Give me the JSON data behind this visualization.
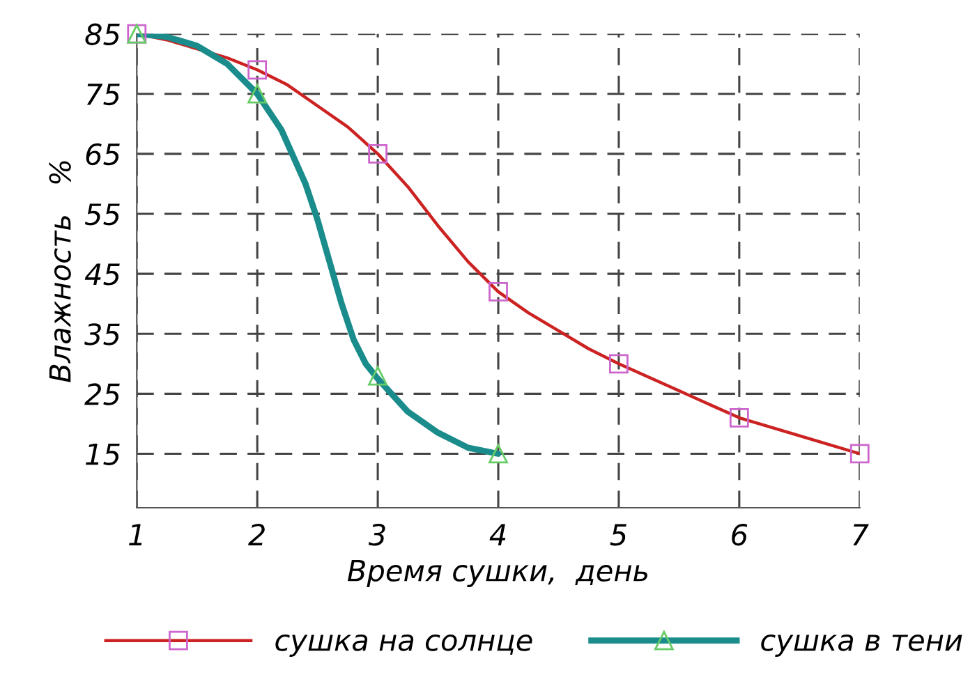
{
  "chart_data": {
    "type": "line",
    "xlabel": "Время сушки,  день",
    "ylabel": "Влажность   %",
    "x": [
      1,
      2,
      3,
      4,
      5,
      6,
      7
    ],
    "series": [
      {
        "name": "сушка на солнце",
        "color": "#cc2222",
        "x": [
          1,
          1.25,
          1.5,
          1.75,
          2,
          2.25,
          2.5,
          2.75,
          3,
          3.25,
          3.5,
          3.75,
          4,
          4.25,
          4.5,
          4.75,
          5,
          5.5,
          6,
          6.5,
          7
        ],
        "values": [
          85,
          84,
          82.5,
          81,
          79,
          76.5,
          73,
          69.5,
          65,
          59.5,
          53,
          47,
          42,
          38.5,
          35.5,
          32.5,
          30,
          25.5,
          21,
          18,
          15
        ]
      },
      {
        "type": "scatter",
        "color": "#cc66cc",
        "marker": "square",
        "values": [
          85,
          79,
          65,
          42,
          30,
          21,
          15
        ]
      },
      {
        "name": "сушка в тени",
        "color": "#1a8c8c",
        "x": [
          1,
          1.25,
          1.5,
          1.75,
          2,
          2.2,
          2.4,
          2.5,
          2.6,
          2.7,
          2.8,
          2.9,
          3,
          3.25,
          3.5,
          3.75,
          4
        ],
        "values": [
          85,
          84.5,
          83,
          80,
          75,
          69,
          60,
          54,
          47,
          40,
          34,
          30,
          27.5,
          22,
          18.5,
          16,
          15
        ]
      },
      {
        "type": "scatter",
        "color": "#66cc66",
        "marker": "triangle",
        "values": [
          85,
          75,
          28,
          15,
          null,
          null,
          null
        ]
      }
    ],
    "xlim": [
      1,
      7
    ],
    "xticks": [
      1,
      2,
      3,
      4,
      5,
      6,
      7
    ],
    "ylim": [
      6,
      85
    ],
    "yticks": [
      15,
      25,
      35,
      45,
      55,
      65,
      75,
      85
    ],
    "grid": true,
    "legend": "bottom",
    "line_style": "solid"
  }
}
